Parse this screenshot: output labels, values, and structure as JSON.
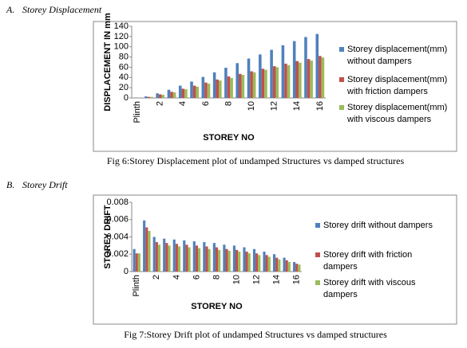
{
  "chart_data": [
    {
      "type": "bar",
      "section_label": "A.",
      "section_title": "Storey Displacement",
      "caption": "Fig 6:Storey Displacement plot of undamped Structures vs damped structures",
      "xlabel": "STOREY NO",
      "ylabel": "DISPLACEMENT IN mm",
      "categories": [
        "Plinth",
        null,
        "2",
        null,
        "4",
        null,
        "6",
        null,
        "8",
        null,
        "10",
        null,
        "12",
        null,
        "14",
        null,
        "16"
      ],
      "series": [
        {
          "name": "Storey displacement(mm) without dampers",
          "color": "#4f81bd",
          "values": [
            0,
            3,
            9,
            16,
            24,
            32,
            41,
            50,
            59,
            68,
            77,
            85,
            94,
            103,
            111,
            119,
            125
          ]
        },
        {
          "name": "Storey displacement(mm) with friction dampers",
          "color": "#c0504d",
          "values": [
            0,
            2,
            7,
            12,
            18,
            24,
            30,
            36,
            42,
            47,
            52,
            57,
            62,
            67,
            72,
            76,
            82
          ]
        },
        {
          "name": "Storey displacement(mm) with viscous dampers",
          "color": "#9bbb59",
          "values": [
            0,
            2,
            6,
            11,
            17,
            22,
            28,
            34,
            39,
            45,
            50,
            55,
            60,
            64,
            69,
            73,
            79
          ]
        }
      ],
      "ylim": [
        0,
        140
      ],
      "yticks": [
        0,
        20,
        40,
        60,
        80,
        100,
        120,
        140
      ],
      "grid": false,
      "legend": "right"
    },
    {
      "type": "bar",
      "section_label": "B.",
      "section_title": "Storey Drift",
      "caption": "Fig 7:Storey Drift plot of undamped Structures vs damped structures",
      "xlabel": "STOREY NO",
      "ylabel": "STOREY DRIFT",
      "categories": [
        "Plinth",
        null,
        "2",
        null,
        "4",
        null,
        "6",
        null,
        "8",
        null,
        "10",
        null,
        "12",
        null,
        "14",
        null,
        "16"
      ],
      "series": [
        {
          "name": "Storey drift without dampers",
          "color": "#4f81bd",
          "values": [
            0.0026,
            0.0059,
            0.004,
            0.0038,
            0.0037,
            0.0036,
            0.0035,
            0.0034,
            0.0033,
            0.0031,
            0.003,
            0.0028,
            0.0026,
            0.0023,
            0.002,
            0.0016,
            0.0011
          ]
        },
        {
          "name": "Storey drift with friction dampers",
          "color": "#c0504d",
          "values": [
            0.0021,
            0.0051,
            0.0034,
            0.0033,
            0.0032,
            0.0031,
            0.003,
            0.0029,
            0.0028,
            0.0026,
            0.0025,
            0.0023,
            0.0021,
            0.0019,
            0.0016,
            0.0013,
            0.0009
          ]
        },
        {
          "name": "Storey drift with viscous dampers",
          "color": "#9bbb59",
          "values": [
            0.0021,
            0.0047,
            0.0031,
            0.003,
            0.0029,
            0.0028,
            0.0027,
            0.0026,
            0.0025,
            0.0024,
            0.0023,
            0.0021,
            0.0019,
            0.0017,
            0.0014,
            0.0011,
            0.0008
          ]
        }
      ],
      "ylim": [
        0,
        0.008
      ],
      "yticks": [
        0,
        0.002,
        0.004,
        0.006,
        0.008
      ],
      "grid": false,
      "legend": "right"
    }
  ]
}
